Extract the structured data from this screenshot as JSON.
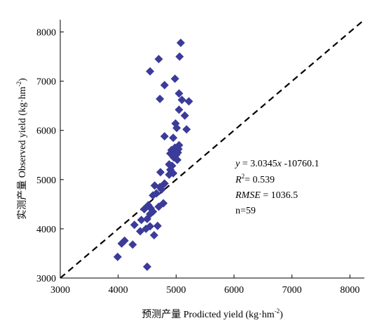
{
  "chart_data": {
    "type": "scatter",
    "title": "",
    "xlabel_main": "预测产量 Prodicted yield (kg·hm",
    "xlabel_sup": "-2",
    "xlabel_close": ")",
    "ylabel_main": "实测产量 Observed yield (kg·hm",
    "ylabel_sup": "-2",
    "ylabel_close": ")",
    "xlim": [
      3000,
      8250
    ],
    "ylim": [
      3000,
      8250
    ],
    "x_ticks": [
      3000,
      4000,
      5000,
      6000,
      7000,
      8000
    ],
    "y_ticks": [
      3000,
      4000,
      5000,
      6000,
      7000,
      8000
    ],
    "x_tick_labels": [
      "3000",
      "4000",
      "5000",
      "6000",
      "7000",
      "8000"
    ],
    "y_tick_labels": [
      "3000",
      "4000",
      "5000",
      "6000",
      "7000",
      "8000"
    ],
    "grid": false,
    "marker": "diamond",
    "marker_color": "#3b3b9a",
    "reference_line": {
      "style": "dashed",
      "color": "#000000",
      "from": [
        3000,
        3000
      ],
      "to": [
        8250,
        8250
      ]
    },
    "annotation": {
      "eq_y": "y",
      "eq_mid": " = 3.0345",
      "eq_x": "x",
      "eq_tail": " -10760.1",
      "r2_r": "R",
      "r2_sup": "2",
      "r2_tail": "= 0.539",
      "rmse_label": "RMSE",
      "rmse_tail": " = 1036.5",
      "n": "n=59"
    },
    "x": [
      5080,
      4700,
      5060,
      4550,
      4980,
      4800,
      5050,
      4720,
      5100,
      5220,
      5050,
      5150,
      4990,
      5180,
      5010,
      4800,
      4950,
      5050,
      4980,
      5040,
      4920,
      4970,
      5030,
      4900,
      5000,
      4960,
      5020,
      4880,
      4930,
      4900,
      4730,
      4950,
      4880,
      4800,
      4630,
      4720,
      4750,
      4660,
      4600,
      4780,
      4520,
      4560,
      4700,
      4450,
      4600,
      4550,
      4500,
      4400,
      4680,
      4280,
      4550,
      4480,
      4620,
      4380,
      4110,
      4060,
      4250,
      3990,
      4500
    ],
    "y": [
      7780,
      7450,
      7500,
      7200,
      7050,
      6920,
      6750,
      6640,
      6620,
      6590,
      6420,
      6300,
      6140,
      6020,
      6050,
      5880,
      5850,
      5700,
      5650,
      5620,
      5600,
      5570,
      5550,
      5530,
      5500,
      5450,
      5400,
      5310,
      5280,
      5200,
      5150,
      5130,
      5100,
      4920,
      4880,
      4850,
      4800,
      4720,
      4680,
      4520,
      4480,
      4420,
      4450,
      4400,
      4350,
      4300,
      4200,
      4180,
      4060,
      4080,
      4050,
      4000,
      3870,
      3950,
      3760,
      3700,
      3680,
      3430,
      3230
    ]
  }
}
